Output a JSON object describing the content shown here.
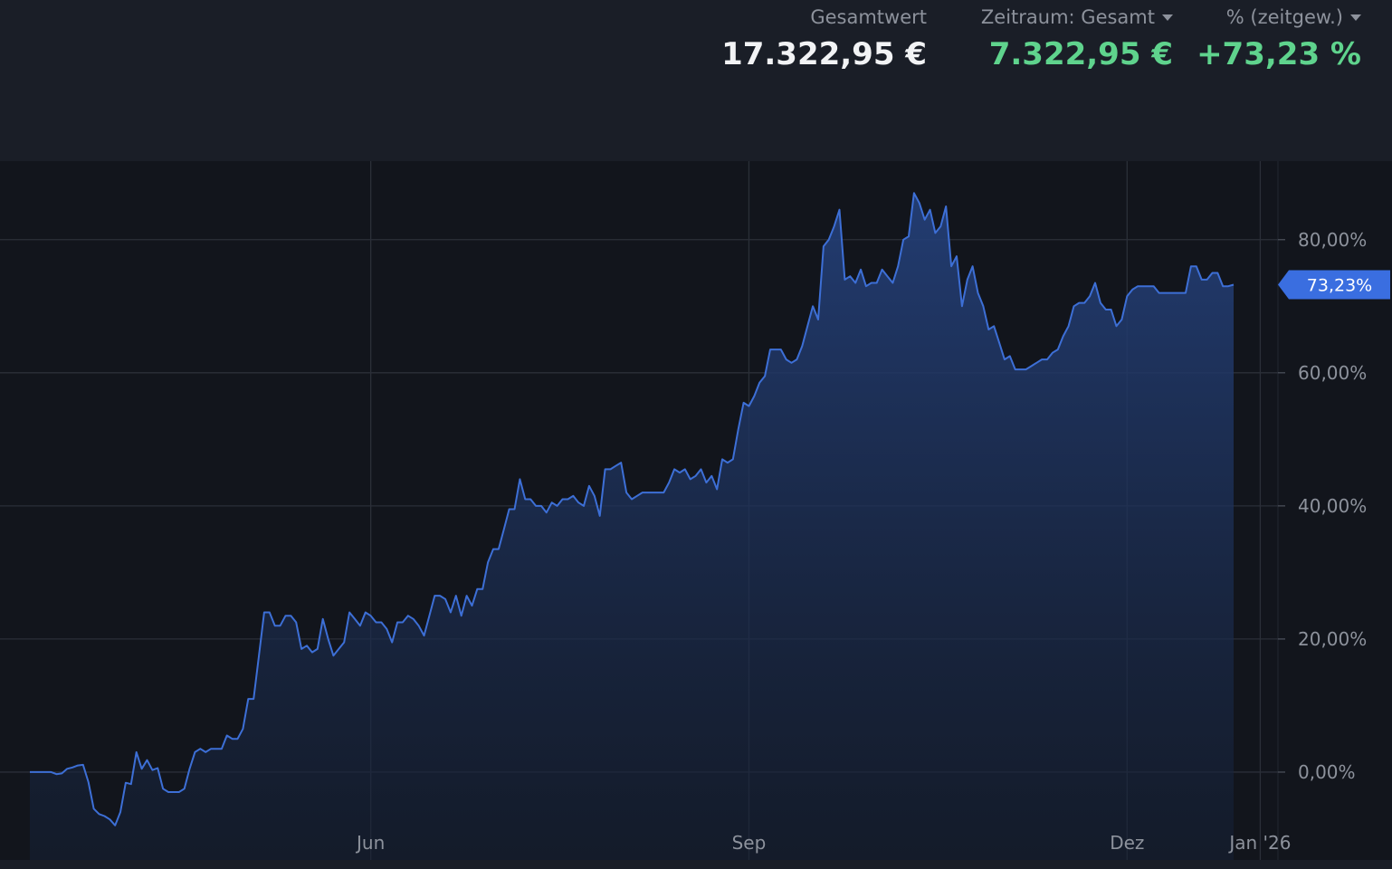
{
  "header": {
    "total": {
      "label": "Gesamtwert",
      "value": "17.322,95 €"
    },
    "period": {
      "label": "Zeitraum: Gesamt",
      "value": "7.322,95 €"
    },
    "percent": {
      "label": "% (zeitgew.)",
      "value": "+73,23 %"
    }
  },
  "colors": {
    "positive": "#5fd38d",
    "line": "#3d6fd6",
    "marker": "#3a6ee0",
    "value_white": "#f2f3f5"
  },
  "chart_data": {
    "type": "area",
    "x_ticks": [
      {
        "label": "Jun",
        "idx": 64
      },
      {
        "label": "Sep",
        "idx": 135
      },
      {
        "label": "Dez",
        "idx": 206
      },
      {
        "label": "Jan '26",
        "idx": 231
      }
    ],
    "y_ticks": [
      "80,00%",
      "60,00%",
      "40,00%",
      "20,00%",
      "0,00%"
    ],
    "y_tick_values": [
      80,
      60,
      40,
      20,
      0
    ],
    "ylim": [
      -13.2,
      91.8
    ],
    "grid": true,
    "last_value_label": "73,23%",
    "last_value": 73.23,
    "values": [
      0,
      0,
      0,
      0,
      0,
      -0.3,
      -0.2,
      0.5,
      0.7,
      1,
      1.1,
      -1.5,
      -5.5,
      -6.3,
      -6.6,
      -7.1,
      -8,
      -6,
      -1.6,
      -1.8,
      3,
      0.5,
      1.8,
      0.3,
      0.6,
      -2.5,
      -3,
      -3,
      -3,
      -2.5,
      0.5,
      3,
      3.5,
      3,
      3.5,
      3.5,
      3.5,
      5.5,
      5,
      5,
      6.5,
      11,
      11,
      17.5,
      24,
      24,
      22,
      22,
      23.5,
      23.5,
      22.5,
      18.5,
      19,
      18,
      18.5,
      23,
      20,
      17.5,
      18.5,
      19.5,
      24,
      23,
      22,
      24,
      23.5,
      22.5,
      22.5,
      21.5,
      19.5,
      22.5,
      22.5,
      23.5,
      23,
      22,
      20.5,
      23.5,
      26.5,
      26.5,
      26,
      24,
      26.5,
      23.5,
      26.5,
      25,
      27.5,
      27.5,
      31.5,
      33.5,
      33.5,
      36.5,
      39.5,
      39.5,
      44,
      41,
      41,
      40,
      40,
      39,
      40.5,
      40,
      41,
      41,
      41.5,
      40.5,
      40,
      43,
      41.5,
      38.5,
      45.5,
      45.5,
      46,
      46.5,
      42,
      41,
      41.5,
      42,
      42,
      42,
      42,
      42,
      43.5,
      45.5,
      45,
      45.5,
      44,
      44.5,
      45.5,
      43.5,
      44.5,
      42.5,
      47,
      46.5,
      47,
      51.5,
      55.5,
      55,
      56.5,
      58.5,
      59.5,
      63.5,
      63.5,
      63.5,
      62,
      61.5,
      62,
      64,
      67,
      70,
      68,
      79,
      80,
      82,
      84.5,
      74,
      74.5,
      73.5,
      75.5,
      73,
      73.5,
      73.5,
      75.5,
      74.5,
      73.5,
      76,
      80,
      80.5,
      87,
      85.5,
      83,
      84.5,
      81,
      82,
      85,
      76,
      77.5,
      70,
      74,
      76,
      72,
      70,
      66.5,
      67,
      64.5,
      62,
      62.5,
      60.5,
      60.5,
      60.5,
      61,
      61.5,
      62,
      62,
      63,
      63.5,
      65.5,
      67,
      70,
      70.5,
      70.5,
      71.5,
      73.5,
      70.5,
      69.5,
      69.5,
      67,
      68,
      71.5,
      72.5,
      73,
      73,
      73,
      73,
      72,
      72,
      72,
      72,
      72,
      72,
      76,
      76,
      74,
      74,
      75,
      75,
      73,
      73,
      73.23
    ]
  }
}
